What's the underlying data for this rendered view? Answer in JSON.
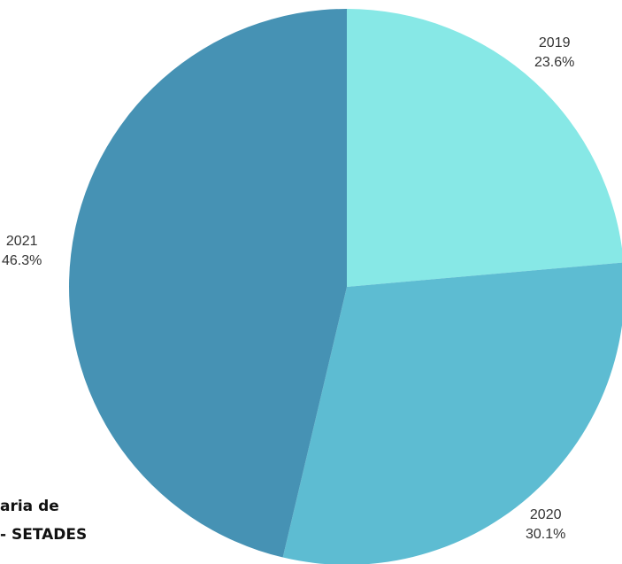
{
  "chart_data": {
    "type": "pie",
    "title": "",
    "categories": [
      "2019",
      "2020",
      "2021"
    ],
    "values": [
      23.6,
      30.1,
      46.3
    ],
    "value_labels": [
      "23.6%",
      "30.1%",
      "46.3%"
    ],
    "colors": [
      "#87e8e6",
      "#5dbcd2",
      "#4692b4"
    ],
    "start_angle": "12 o'clock",
    "direction": "clockwise",
    "legend": "none"
  },
  "source_note": {
    "line1": "aria de",
    "line2": "- SETADES"
  }
}
